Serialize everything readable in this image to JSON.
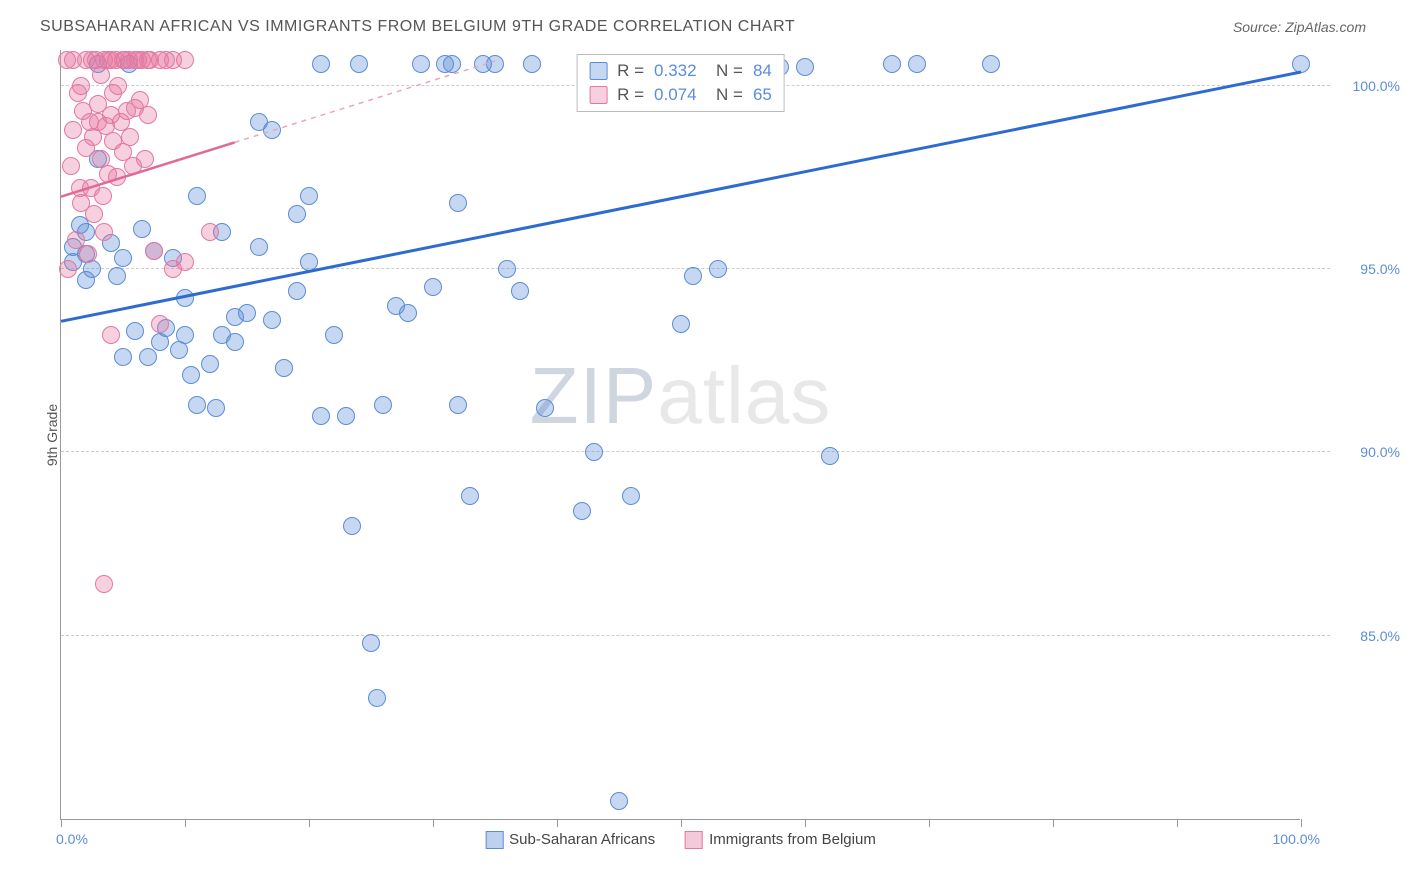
{
  "header": {
    "title": "SUBSAHARAN AFRICAN VS IMMIGRANTS FROM BELGIUM 9TH GRADE CORRELATION CHART",
    "source": "Source: ZipAtlas.com"
  },
  "chart": {
    "type": "scatter",
    "y_axis_label": "9th Grade",
    "xlim": [
      0,
      100
    ],
    "ylim": [
      80,
      101
    ],
    "x_ticks": [
      0,
      10,
      20,
      30,
      40,
      50,
      60,
      70,
      80,
      90,
      100
    ],
    "x_tick_labels_shown": {
      "left": "0.0%",
      "right": "100.0%"
    },
    "y_ticks": [
      85,
      90,
      95,
      100
    ],
    "y_tick_labels": [
      "85.0%",
      "90.0%",
      "95.0%",
      "100.0%"
    ],
    "grid_color": "#cccccc",
    "axis_color": "#999999",
    "background_color": "#ffffff",
    "marker_radius": 9,
    "series": [
      {
        "name": "Sub-Saharan Africans",
        "color_fill": "rgba(91,141,214,0.35)",
        "color_stroke": "#5b8dd6",
        "r_value": "0.332",
        "n_value": "84",
        "trend": {
          "x1": 0,
          "y1": 93.6,
          "x2": 100,
          "y2": 100.4,
          "solid_until_x": 100
        },
        "points": [
          [
            1,
            95.2
          ],
          [
            1,
            95.6
          ],
          [
            1.5,
            96.2
          ],
          [
            2,
            95.4
          ],
          [
            2,
            94.7
          ],
          [
            2,
            96.0
          ],
          [
            2.5,
            95.0
          ],
          [
            3,
            98.0
          ],
          [
            3,
            100.6
          ],
          [
            4,
            95.7
          ],
          [
            4.5,
            94.8
          ],
          [
            5,
            92.6
          ],
          [
            5,
            95.3
          ],
          [
            5.5,
            100.6
          ],
          [
            6,
            93.3
          ],
          [
            6.5,
            96.1
          ],
          [
            7,
            92.6
          ],
          [
            7.5,
            95.5
          ],
          [
            8,
            93.0
          ],
          [
            8.5,
            93.4
          ],
          [
            9,
            95.3
          ],
          [
            9.5,
            92.8
          ],
          [
            10,
            94.2
          ],
          [
            10,
            93.2
          ],
          [
            10.5,
            92.1
          ],
          [
            11,
            97.0
          ],
          [
            11,
            91.3
          ],
          [
            12,
            92.4
          ],
          [
            12.5,
            91.2
          ],
          [
            13,
            93.2
          ],
          [
            13,
            96.0
          ],
          [
            14,
            93.7
          ],
          [
            14,
            93.0
          ],
          [
            15,
            93.8
          ],
          [
            16,
            95.6
          ],
          [
            16,
            99.0
          ],
          [
            17,
            98.8
          ],
          [
            17,
            93.6
          ],
          [
            18,
            92.3
          ],
          [
            19,
            96.5
          ],
          [
            19,
            94.4
          ],
          [
            20,
            95.2
          ],
          [
            20,
            97.0
          ],
          [
            21,
            100.6
          ],
          [
            21,
            91.0
          ],
          [
            22,
            93.2
          ],
          [
            23,
            91.0
          ],
          [
            23.5,
            88.0
          ],
          [
            24,
            100.6
          ],
          [
            25,
            84.8
          ],
          [
            25.5,
            83.3
          ],
          [
            26,
            91.3
          ],
          [
            27,
            94.0
          ],
          [
            28,
            93.8
          ],
          [
            29,
            100.6
          ],
          [
            30,
            94.5
          ],
          [
            31,
            100.6
          ],
          [
            31.5,
            100.6
          ],
          [
            32,
            91.3
          ],
          [
            32,
            96.8
          ],
          [
            33,
            88.8
          ],
          [
            34,
            100.6
          ],
          [
            35,
            100.6
          ],
          [
            36,
            95.0
          ],
          [
            37,
            94.4
          ],
          [
            38,
            100.6
          ],
          [
            39,
            91.2
          ],
          [
            42,
            88.4
          ],
          [
            43,
            90.0
          ],
          [
            44,
            100.6
          ],
          [
            45,
            80.5
          ],
          [
            46,
            88.8
          ],
          [
            48,
            100.6
          ],
          [
            50,
            93.5
          ],
          [
            51,
            94.8
          ],
          [
            53,
            95.0
          ],
          [
            55,
            100.5
          ],
          [
            58,
            100.5
          ],
          [
            60,
            100.5
          ],
          [
            62,
            89.9
          ],
          [
            67,
            100.6
          ],
          [
            69,
            100.6
          ],
          [
            75,
            100.6
          ],
          [
            100,
            100.6
          ]
        ]
      },
      {
        "name": "Immigrants from Belgium",
        "color_fill": "rgba(228,120,160,0.35)",
        "color_stroke": "#e478a0",
        "r_value": "0.074",
        "n_value": "65",
        "trend": {
          "x1": 0,
          "y1": 97.0,
          "x2": 35,
          "y2": 100.7,
          "dashed_from_x": 14
        },
        "points": [
          [
            0.5,
            100.7
          ],
          [
            0.6,
            95.0
          ],
          [
            0.8,
            97.8
          ],
          [
            1,
            100.7
          ],
          [
            1,
            98.8
          ],
          [
            1.2,
            95.8
          ],
          [
            1.4,
            99.8
          ],
          [
            1.5,
            97.2
          ],
          [
            1.6,
            100.0
          ],
          [
            1.6,
            96.8
          ],
          [
            1.8,
            99.3
          ],
          [
            2,
            100.7
          ],
          [
            2,
            98.3
          ],
          [
            2.2,
            95.4
          ],
          [
            2.3,
            99.0
          ],
          [
            2.4,
            97.2
          ],
          [
            2.5,
            100.7
          ],
          [
            2.6,
            98.6
          ],
          [
            2.7,
            96.5
          ],
          [
            2.8,
            100.7
          ],
          [
            3,
            99.5
          ],
          [
            3,
            99.0
          ],
          [
            3.2,
            98.0
          ],
          [
            3.2,
            100.3
          ],
          [
            3.4,
            97.0
          ],
          [
            3.5,
            100.7
          ],
          [
            3.5,
            96.0
          ],
          [
            3.6,
            98.9
          ],
          [
            3.8,
            100.7
          ],
          [
            3.8,
            97.6
          ],
          [
            4,
            99.2
          ],
          [
            4,
            100.7
          ],
          [
            4.2,
            98.5
          ],
          [
            4.2,
            99.8
          ],
          [
            4.4,
            100.7
          ],
          [
            4.5,
            97.5
          ],
          [
            4.6,
            100.0
          ],
          [
            4.8,
            99.0
          ],
          [
            5,
            100.7
          ],
          [
            5,
            98.2
          ],
          [
            5.2,
            100.7
          ],
          [
            5.3,
            99.3
          ],
          [
            5.5,
            100.7
          ],
          [
            5.6,
            98.6
          ],
          [
            5.8,
            97.8
          ],
          [
            6,
            100.7
          ],
          [
            6,
            99.4
          ],
          [
            6.2,
            100.7
          ],
          [
            6.4,
            99.6
          ],
          [
            6.5,
            100.7
          ],
          [
            6.8,
            98.0
          ],
          [
            7,
            100.7
          ],
          [
            7,
            99.2
          ],
          [
            7.2,
            100.7
          ],
          [
            7.5,
            95.5
          ],
          [
            8,
            100.7
          ],
          [
            8,
            93.5
          ],
          [
            8.5,
            100.7
          ],
          [
            9,
            95.0
          ],
          [
            9,
            100.7
          ],
          [
            10,
            100.7
          ],
          [
            10,
            95.2
          ],
          [
            12,
            96.0
          ],
          [
            3.5,
            86.4
          ],
          [
            4,
            93.2
          ]
        ]
      }
    ],
    "legend_bottom": [
      {
        "swatch_fill": "rgba(91,141,214,0.4)",
        "swatch_stroke": "#5b8dd6",
        "label": "Sub-Saharan Africans"
      },
      {
        "swatch_fill": "rgba(228,120,160,0.4)",
        "swatch_stroke": "#e478a0",
        "label": "Immigrants from Belgium"
      }
    ],
    "watermark": "ZIPatlas"
  }
}
